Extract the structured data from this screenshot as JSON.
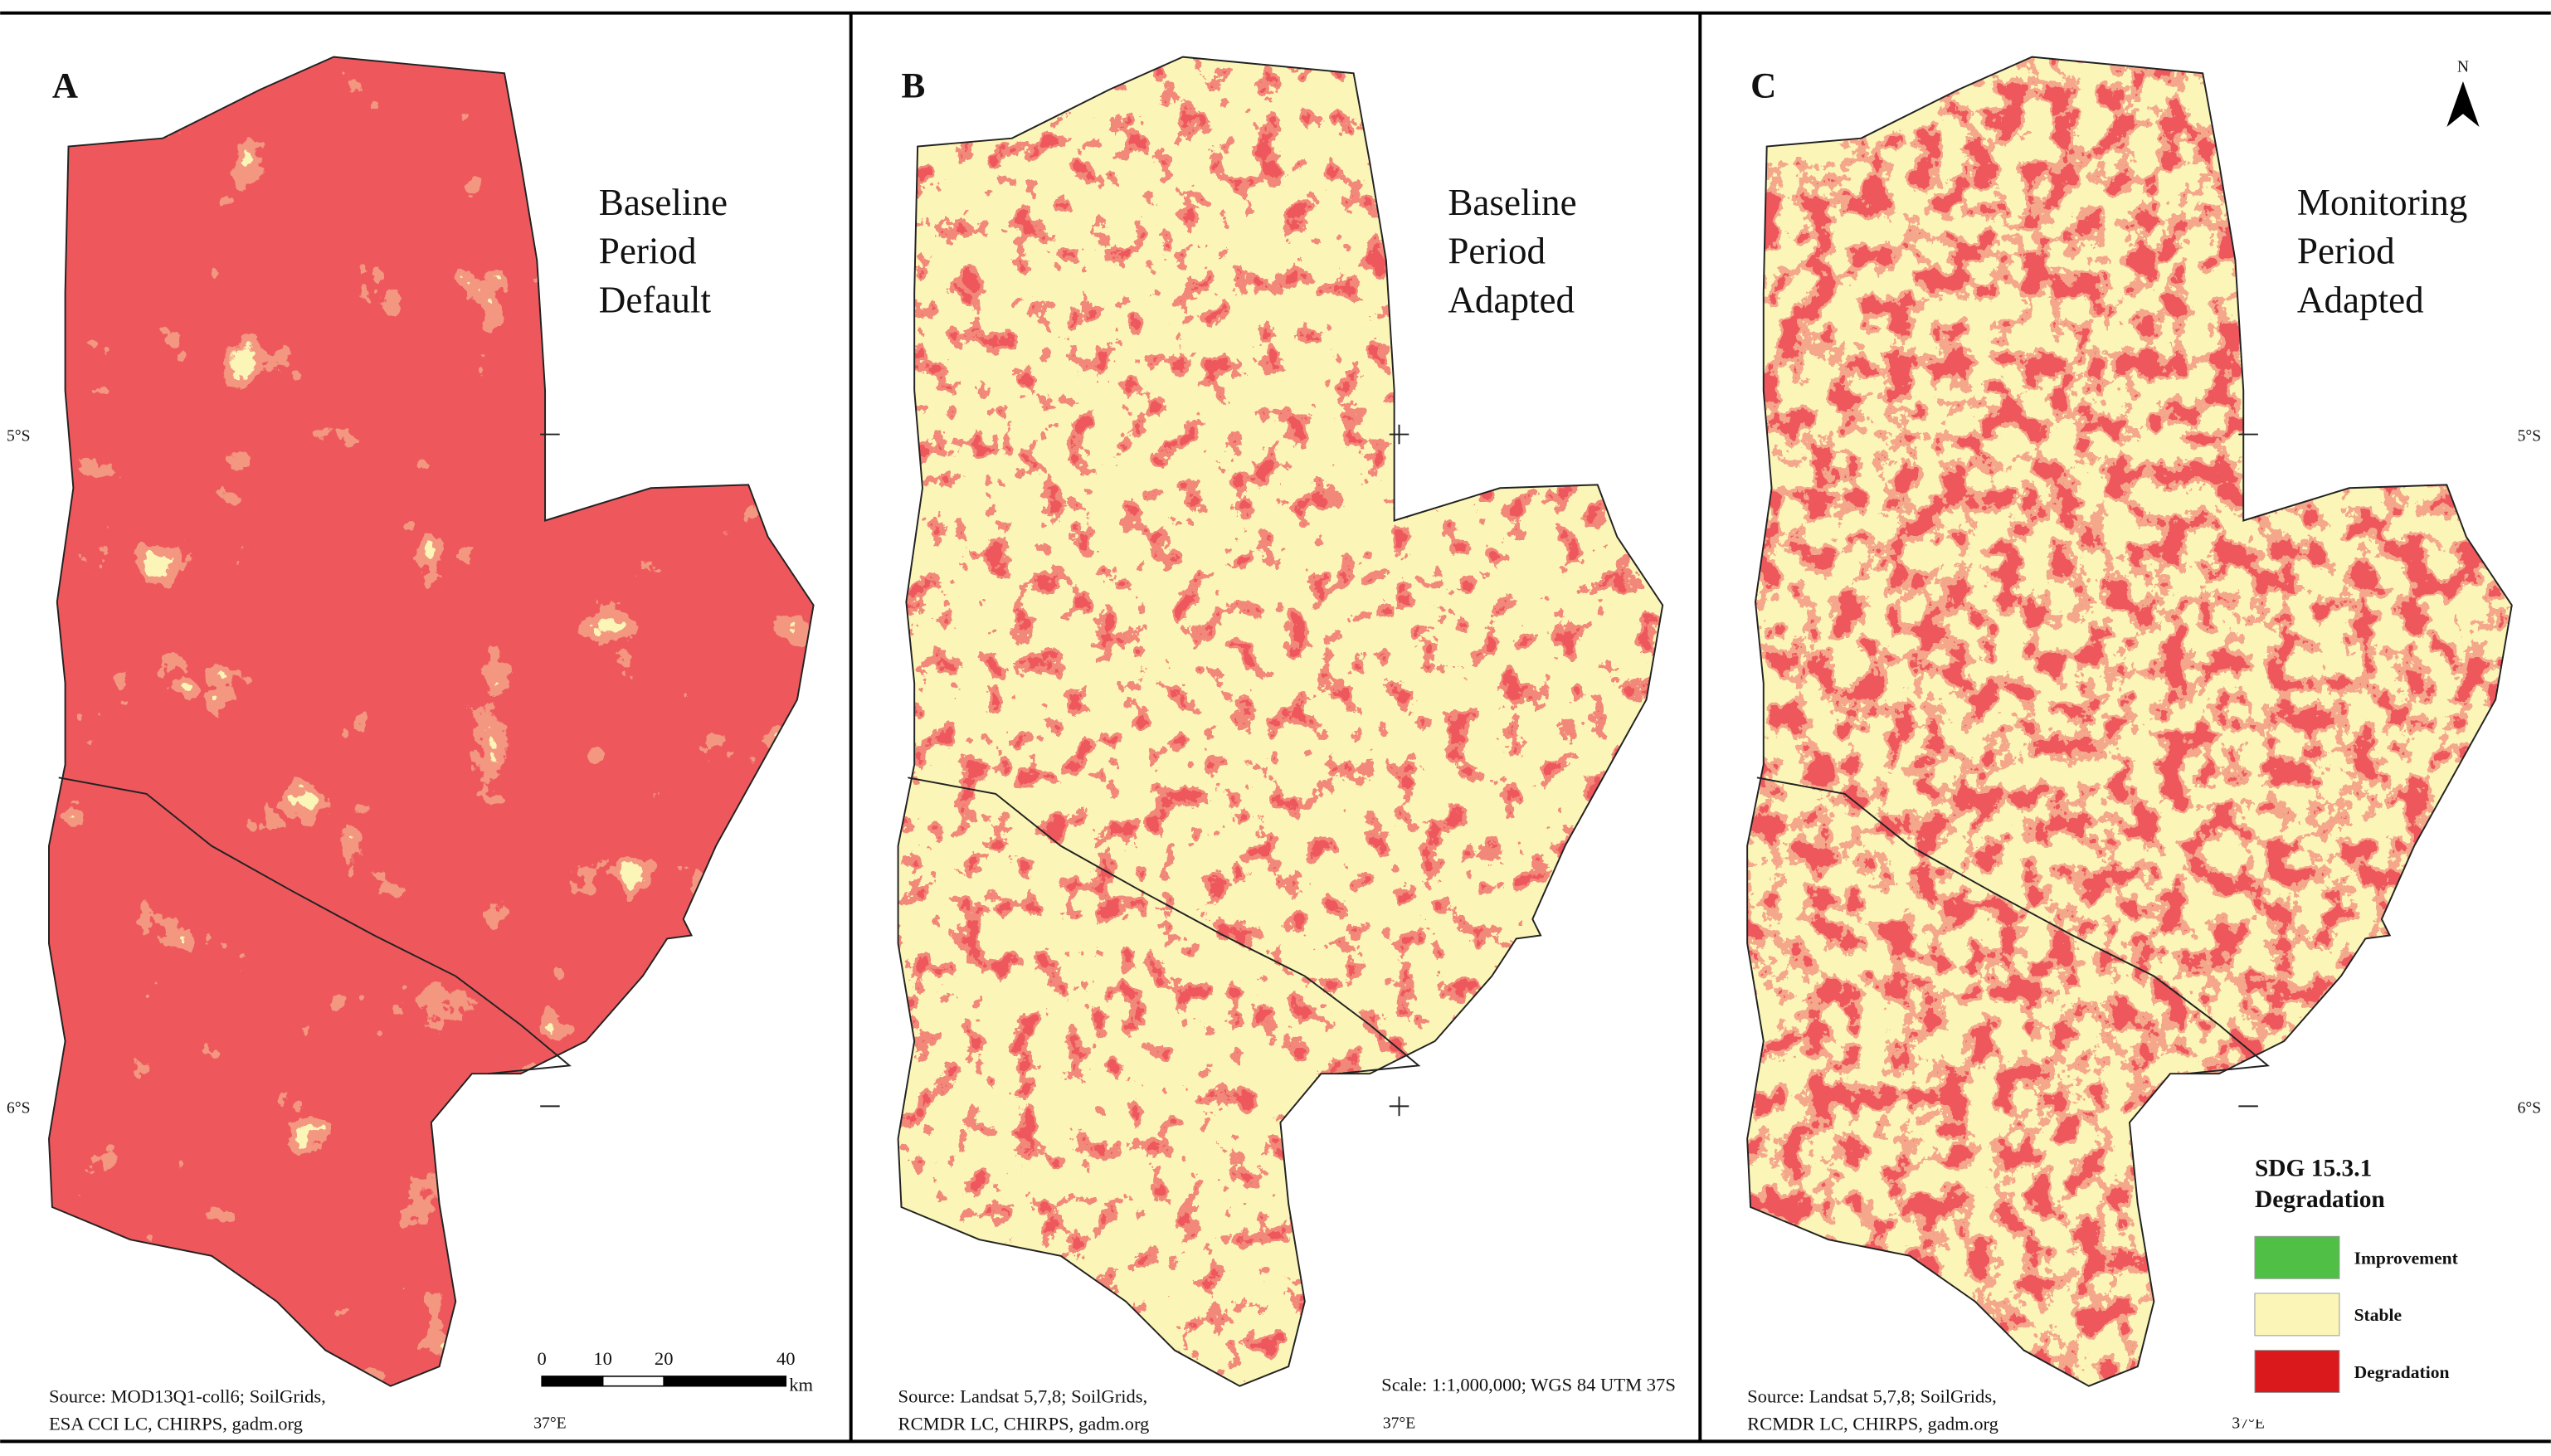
{
  "panels": [
    {
      "letter": "A",
      "title": [
        "Baseline",
        "Period",
        "Default"
      ],
      "source": [
        "Source: MOD13Q1-coll6; SoilGrids,",
        "ESA CCI LC, CHIRPS, gadm.org"
      ]
    },
    {
      "letter": "B",
      "title": [
        "Baseline",
        "Period",
        "Adapted"
      ],
      "source": [
        "Source: Landsat 5,7,8; SoilGrids,",
        "RCMDR LC, CHIRPS, gadm.org"
      ]
    },
    {
      "letter": "C",
      "title": [
        "Monitoring",
        "Period",
        "Adapted"
      ],
      "source": [
        "Source: Landsat 5,7,8; SoilGrids,",
        "RCMDR LC, CHIRPS, gadm.org"
      ]
    }
  ],
  "graticule": {
    "lat_labels": [
      "5°S",
      "6°S"
    ],
    "lon_label": "37°E"
  },
  "scale_bar": {
    "ticks": [
      0,
      10,
      20,
      40
    ],
    "unit": "km"
  },
  "scale_text": "Scale: 1:1,000,000; WGS 84 UTM 37S",
  "north": "N",
  "legend": {
    "title": [
      "SDG 15.3.1",
      "Degradation"
    ],
    "items": [
      {
        "label": "Improvement",
        "color": "#4fbf45"
      },
      {
        "label": "Stable",
        "color": "#fbf6b8"
      },
      {
        "label": "Degradation",
        "color": "#d9191c"
      }
    ]
  }
}
